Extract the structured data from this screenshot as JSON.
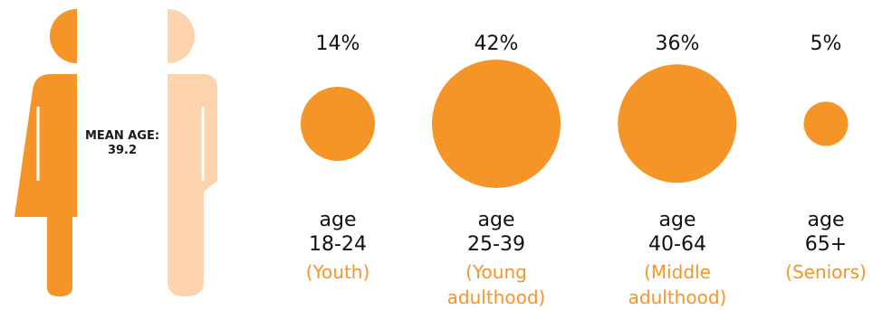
{
  "colors": {
    "accent": "#f59427",
    "light": "#fdd3ad",
    "text": "#111111"
  },
  "figure": {
    "label_line1": "MEAN AGE:",
    "label_line2": "39.2"
  },
  "chart_data": {
    "type": "bubble",
    "title": "",
    "mean_age": 39.2,
    "categories": [
      {
        "percent_label": "14%",
        "value": 14,
        "age_word": "age",
        "range": "18-24",
        "stage": "(Youth)"
      },
      {
        "percent_label": "42%",
        "value": 42,
        "age_word": "age",
        "range": "25-39",
        "stage": "(Young adulthood)"
      },
      {
        "percent_label": "36%",
        "value": 36,
        "age_word": "age",
        "range": "40-64",
        "stage": "(Middle adulthood)"
      },
      {
        "percent_label": "5%",
        "value": 5,
        "age_word": "age",
        "range": "65+",
        "stage": "(Seniors)"
      }
    ]
  }
}
